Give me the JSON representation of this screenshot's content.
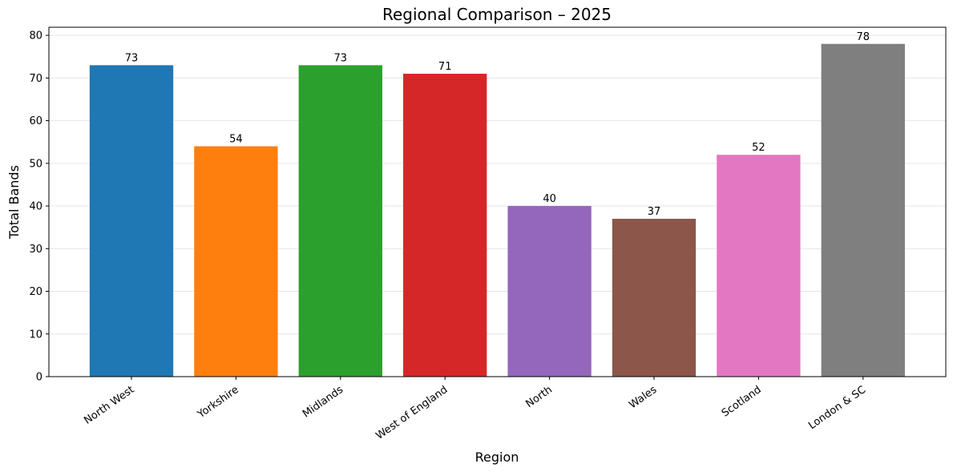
{
  "chart_data": {
    "type": "bar",
    "title": "Regional Comparison – 2025",
    "x_label": "Region",
    "y_label": "Total Bands",
    "categories": [
      "North West",
      "Yorkshire",
      "Midlands",
      "West of England",
      "North",
      "Wales",
      "Scotland",
      "London & SC"
    ],
    "values": [
      73,
      54,
      73,
      71,
      40,
      37,
      52,
      78
    ],
    "colors": [
      "#1f77b4",
      "#ff7f0e",
      "#2ca02c",
      "#d62728",
      "#9467bd",
      "#8c564b",
      "#e377c2",
      "#7f7f7f"
    ],
    "ylim": [
      0,
      81.9
    ],
    "yticks": [
      0,
      10,
      20,
      30,
      40,
      50,
      60,
      70,
      80
    ],
    "grid": true
  }
}
